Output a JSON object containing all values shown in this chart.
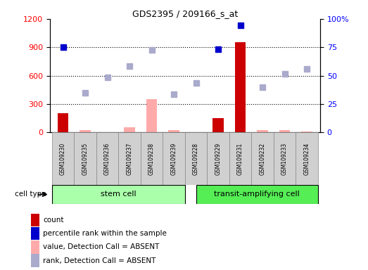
{
  "title": "GDS2395 / 209166_s_at",
  "samples": [
    "GSM109230",
    "GSM109235",
    "GSM109236",
    "GSM109237",
    "GSM109238",
    "GSM109239",
    "GSM109228",
    "GSM109229",
    "GSM109231",
    "GSM109232",
    "GSM109233",
    "GSM109234"
  ],
  "stem_cell_count": 6,
  "transit_cell_count": 6,
  "count_present": {
    "GSM109230": 200,
    "GSM109229": 150,
    "GSM109231": 950
  },
  "value_absent": {
    "GSM109235": 20,
    "GSM109237": 50,
    "GSM109238": 350,
    "GSM109239": 20,
    "GSM109232": 25,
    "GSM109233": 20,
    "GSM109234": 10
  },
  "rank_present": {
    "GSM109230": 900,
    "GSM109229": 880,
    "GSM109231": 1135
  },
  "rank_absent": {
    "GSM109235": 420,
    "GSM109236": 580,
    "GSM109237": 700,
    "GSM109238": 870,
    "GSM109239": 400,
    "GSM109228": 520,
    "GSM109232": 480,
    "GSM109233": 620,
    "GSM109234": 670
  },
  "ylim_left": [
    0,
    1200
  ],
  "ylim_right": [
    0,
    100
  ],
  "yticks_left": [
    0,
    300,
    600,
    900,
    1200
  ],
  "yticks_right": [
    0,
    25,
    50,
    75,
    100
  ],
  "color_count": "#cc0000",
  "color_rank_present": "#0000cc",
  "color_value_absent": "#ffaaaa",
  "color_rank_absent": "#aaaacc",
  "color_stem": "#aaffaa",
  "color_transit": "#55ee55",
  "bar_width": 0.5,
  "marker_size": 6,
  "legend_items": [
    {
      "label": "count",
      "color": "#cc0000"
    },
    {
      "label": "percentile rank within the sample",
      "color": "#0000cc"
    },
    {
      "label": "value, Detection Call = ABSENT",
      "color": "#ffaaaa"
    },
    {
      "label": "rank, Detection Call = ABSENT",
      "color": "#aaaacc"
    }
  ]
}
